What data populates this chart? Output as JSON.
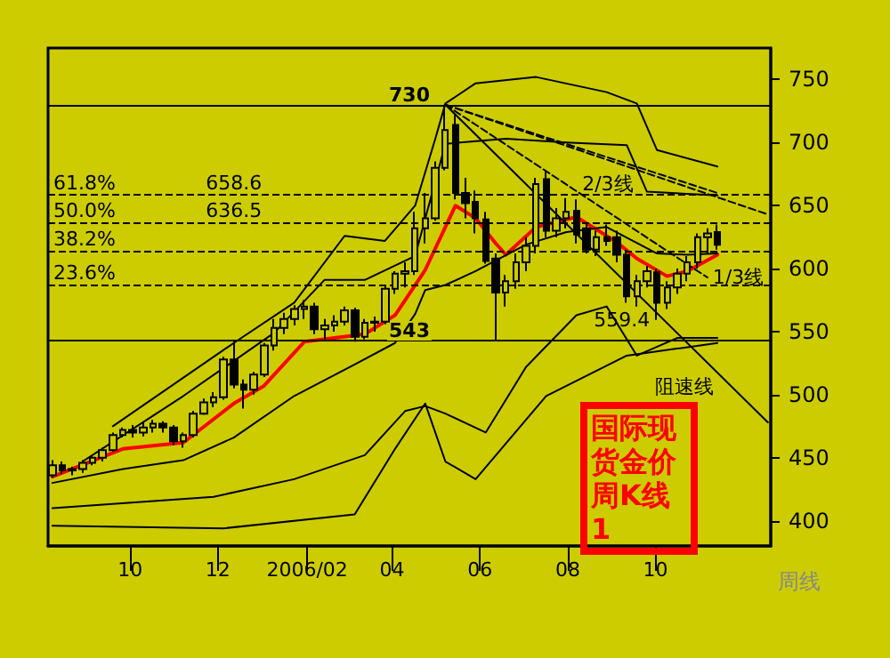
{
  "chart_data": {
    "type": "candlestick",
    "title": "国际现货金价周K线1",
    "xlabel": "周线",
    "marker": "none",
    "x": [
      "2005-08-08",
      "2005-08-15",
      "2005-08-22",
      "2005-08-29",
      "2005-09-05",
      "2005-09-12",
      "2005-09-19",
      "2005-09-26",
      "2005-10-03",
      "2005-10-10",
      "2005-10-17",
      "2005-10-24",
      "2005-10-31",
      "2005-11-07",
      "2005-11-14",
      "2005-11-21",
      "2005-11-28",
      "2005-12-05",
      "2005-12-12",
      "2005-12-19",
      "2005-12-26",
      "2006-01-02",
      "2006-01-09",
      "2006-01-16",
      "2006-01-23",
      "2006-01-30",
      "2006-02-06",
      "2006-02-13",
      "2006-02-20",
      "2006-02-27",
      "2006-03-06",
      "2006-03-13",
      "2006-03-20",
      "2006-03-27",
      "2006-04-03",
      "2006-04-10",
      "2006-04-17",
      "2006-04-24",
      "2006-05-01",
      "2006-05-08",
      "2006-05-15",
      "2006-05-22",
      "2006-05-29",
      "2006-06-05",
      "2006-06-12",
      "2006-06-19",
      "2006-06-26",
      "2006-07-03",
      "2006-07-10",
      "2006-07-17",
      "2006-07-24",
      "2006-07-31",
      "2006-08-07",
      "2006-08-14",
      "2006-08-21",
      "2006-08-28",
      "2006-09-04",
      "2006-09-11",
      "2006-09-18",
      "2006-09-25",
      "2006-10-02",
      "2006-10-09",
      "2006-10-16",
      "2006-10-23",
      "2006-10-30",
      "2006-11-06",
      "2006-11-13"
    ],
    "ohlc": [
      [
        436,
        448,
        434,
        444
      ],
      [
        444,
        447,
        437,
        440
      ],
      [
        440,
        443,
        436,
        441
      ],
      [
        441,
        448,
        438,
        446
      ],
      [
        446,
        452,
        444,
        450
      ],
      [
        450,
        458,
        447,
        456
      ],
      [
        456,
        470,
        455,
        468
      ],
      [
        468,
        474,
        466,
        472
      ],
      [
        472,
        476,
        466,
        470
      ],
      [
        470,
        478,
        467,
        474
      ],
      [
        474,
        480,
        470,
        477
      ],
      [
        477,
        479,
        470,
        474
      ],
      [
        474,
        476,
        460,
        463
      ],
      [
        463,
        470,
        458,
        468
      ],
      [
        468,
        487,
        466,
        485
      ],
      [
        485,
        497,
        484,
        494
      ],
      [
        494,
        502,
        490,
        498
      ],
      [
        498,
        530,
        496,
        528
      ],
      [
        528,
        542,
        505,
        508
      ],
      [
        508,
        512,
        489,
        504
      ],
      [
        504,
        518,
        500,
        516
      ],
      [
        516,
        541,
        514,
        539
      ],
      [
        539,
        560,
        535,
        553
      ],
      [
        553,
        565,
        548,
        560
      ],
      [
        560,
        571,
        555,
        568
      ],
      [
        568,
        575,
        560,
        570
      ],
      [
        570,
        573,
        548,
        552
      ],
      [
        552,
        560,
        544,
        555
      ],
      [
        555,
        563,
        550,
        558
      ],
      [
        558,
        570,
        555,
        567
      ],
      [
        567,
        569,
        542,
        546
      ],
      [
        546,
        560,
        544,
        557
      ],
      [
        557,
        562,
        550,
        558
      ],
      [
        558,
        587,
        556,
        584
      ],
      [
        584,
        598,
        580,
        596
      ],
      [
        596,
        605,
        585,
        598
      ],
      [
        598,
        645,
        595,
        632
      ],
      [
        632,
        660,
        620,
        640
      ],
      [
        640,
        685,
        638,
        680
      ],
      [
        680,
        730,
        678,
        710
      ],
      [
        714,
        722,
        655,
        660
      ],
      [
        660,
        672,
        640,
        652
      ],
      [
        653,
        662,
        628,
        640
      ],
      [
        639,
        645,
        604,
        606
      ],
      [
        608,
        612,
        543,
        581
      ],
      [
        581,
        595,
        570,
        590
      ],
      [
        590,
        612,
        584,
        605
      ],
      [
        605,
        625,
        598,
        618
      ],
      [
        618,
        672,
        612,
        667
      ],
      [
        671,
        677,
        625,
        630
      ],
      [
        630,
        648,
        625,
        640
      ],
      [
        640,
        656,
        632,
        645
      ],
      [
        646,
        655,
        620,
        627
      ],
      [
        632,
        636,
        612,
        615
      ],
      [
        615,
        630,
        610,
        625
      ],
      [
        625,
        635,
        618,
        622
      ],
      [
        625,
        630,
        605,
        611
      ],
      [
        611,
        615,
        573,
        578
      ],
      [
        578,
        595,
        570,
        590
      ],
      [
        590,
        602,
        585,
        598
      ],
      [
        597,
        600,
        559.4,
        573
      ],
      [
        573,
        590,
        568,
        585
      ],
      [
        585,
        600,
        580,
        596
      ],
      [
        596,
        610,
        590,
        605
      ],
      [
        605,
        628,
        600,
        625
      ],
      [
        625,
        632,
        612,
        628
      ],
      [
        629,
        635,
        615,
        619
      ]
    ],
    "series": [
      {
        "type": "line",
        "color": "#ff0000",
        "x": [
          "2005-08-08",
          "2005-09-26",
          "2005-11-07",
          "2005-12-12",
          "2006-01-02",
          "2006-01-30",
          "2006-03-13",
          "2006-04-03",
          "2006-04-24",
          "2006-05-15",
          "2006-05-29",
          "2006-06-12",
          "2006-06-19",
          "2006-07-10",
          "2006-08-07",
          "2006-09-04",
          "2006-09-18",
          "2006-10-09",
          "2006-10-23",
          "2006-11-13"
        ],
        "values": [
          435,
          457,
          462,
          493,
          507,
          542,
          548,
          563,
          599,
          650,
          640,
          620,
          611,
          633,
          641,
          621,
          608,
          594,
          598,
          611
        ]
      },
      {
        "type": "line",
        "color": "#000000",
        "x": [
          "2005-08-08",
          "2005-09-26",
          "2005-11-07",
          "2005-12-12",
          "2006-01-23",
          "2006-03-06",
          "2006-04-03",
          "2006-04-17",
          "2006-04-24",
          "2006-05-08",
          "2006-05-29",
          "2006-07-03",
          "2006-07-31",
          "2006-08-28",
          "2006-10-02",
          "2006-10-23",
          "2006-11-13"
        ],
        "values": [
          430,
          441,
          448,
          466,
          499,
          524,
          541,
          564,
          583,
          587,
          598,
          619,
          629,
          633,
          612,
          611,
          612
        ]
      },
      {
        "type": "line",
        "color": "#000000",
        "x": [
          "2005-09-19",
          "2005-12-12",
          "2006-01-23",
          "2006-02-27",
          "2006-03-27",
          "2006-04-17",
          "2006-05-01",
          "2006-05-08",
          "2006-05-29",
          "2006-07-10",
          "2006-08-28",
          "2006-09-18",
          "2006-10-02",
          "2006-11-13"
        ],
        "values": [
          475,
          541,
          573,
          626,
          622,
          650,
          703,
          731,
          747,
          752,
          740,
          731,
          694,
          681
        ]
      },
      {
        "type": "line",
        "color": "#000000",
        "x": [
          "2005-08-29",
          "2005-11-07",
          "2006-01-09",
          "2006-02-13",
          "2006-03-13",
          "2006-04-17",
          "2006-05-08",
          "2006-06-19",
          "2006-07-31",
          "2006-09-11",
          "2006-09-25",
          "2006-11-13"
        ],
        "values": [
          447,
          499,
          549,
          591,
          591,
          610,
          699,
          703,
          700,
          698,
          661,
          658
        ]
      },
      {
        "type": "line",
        "color": "#000000",
        "x": [
          "2005-08-08",
          "2005-11-28",
          "2006-01-23",
          "2006-03-13",
          "2006-04-10",
          "2006-04-24",
          "2006-05-08",
          "2006-06-05",
          "2006-07-03",
          "2006-08-07",
          "2006-08-28",
          "2006-09-18",
          "2006-10-16",
          "2006-11-13"
        ],
        "values": [
          410,
          419,
          433,
          452,
          487,
          491,
          485,
          470,
          522,
          563,
          570,
          531,
          545,
          545
        ]
      },
      {
        "type": "line",
        "color": "#000000",
        "x": [
          "2005-08-08",
          "2005-12-05",
          "2006-03-06",
          "2006-04-03",
          "2006-04-24",
          "2006-05-08",
          "2006-05-29",
          "2006-07-17",
          "2006-09-11",
          "2006-11-13"
        ],
        "values": [
          396,
          394,
          405,
          457,
          493,
          447,
          433,
          499,
          531,
          541
        ]
      },
      {
        "type": "line",
        "color": "#000000",
        "x": [
          "2006-05-08",
          "2006-12-18"
        ],
        "values": [
          730,
          478
        ]
      },
      {
        "type": "line",
        "color": "#000000",
        "line_style": "dashed",
        "x": [
          "2006-05-08",
          "2006-12-18"
        ],
        "values": [
          730,
          643
        ]
      },
      {
        "type": "line",
        "color": "#000000",
        "line_style": "dashed",
        "x": [
          "2006-05-08",
          "2006-11-13"
        ],
        "values": [
          730,
          660
        ]
      },
      {
        "type": "line",
        "color": "#000000",
        "line_style": "dashed",
        "x": [
          "2006-05-08",
          "2006-11-06"
        ],
        "values": [
          730,
          593
        ]
      }
    ],
    "xlim": [
      "2005-08-05",
      "2006-12-20"
    ],
    "xticks": [
      {
        "value": "2005-10-01",
        "label": "10"
      },
      {
        "value": "2005-12-01",
        "label": "12"
      },
      {
        "value": "2006-02-01",
        "label": "2006/02"
      },
      {
        "value": "2006-04-01",
        "label": "04"
      },
      {
        "value": "2006-06-01",
        "label": "06"
      },
      {
        "value": "2006-08-01",
        "label": "08"
      },
      {
        "value": "2006-10-01",
        "label": "10"
      }
    ],
    "ylim": [
      380,
      775
    ],
    "yticks": [
      400,
      450,
      500,
      550,
      600,
      650,
      700,
      750
    ],
    "ref_lines": [
      {
        "axis": "y",
        "value": 730,
        "label": "730",
        "color": "#000000",
        "line_style": "solid"
      },
      {
        "axis": "y",
        "value": 543,
        "label": "543",
        "color": "#000000",
        "line_style": "solid"
      },
      {
        "axis": "y",
        "value": 658.6,
        "color": "#000000",
        "line_style": "dashed"
      },
      {
        "axis": "y",
        "value": 636.5,
        "color": "#000000",
        "line_style": "dashed"
      },
      {
        "axis": "y",
        "value": 614.4,
        "color": "#000000",
        "line_style": "dashed"
      },
      {
        "axis": "y",
        "value": 587.1,
        "color": "#000000",
        "line_style": "dashed"
      }
    ],
    "annotations": [
      {
        "text": "61.8%",
        "x": "2005-08-05",
        "y": 658.6
      },
      {
        "text": "50.0%",
        "x": "2005-08-05",
        "y": 636.5
      },
      {
        "text": "38.2%",
        "x": "2005-08-05",
        "y": 614.4
      },
      {
        "text": "23.6%",
        "x": "2005-08-05",
        "y": 587.1
      },
      {
        "text": "658.6",
        "x": "2005-12-12",
        "y": 658.6
      },
      {
        "text": "636.5",
        "x": "2005-12-12",
        "y": 636.5
      },
      {
        "text": "559.4",
        "x": "2006-10-02",
        "y": 559.4
      },
      {
        "text": "2/3线",
        "x": "2006-09-18",
        "y": 678
      },
      {
        "text": "1/3线",
        "x": "2006-11-06",
        "y": 593
      },
      {
        "text": "阻速线",
        "x": "2006-11-13",
        "y": 517
      }
    ]
  }
}
